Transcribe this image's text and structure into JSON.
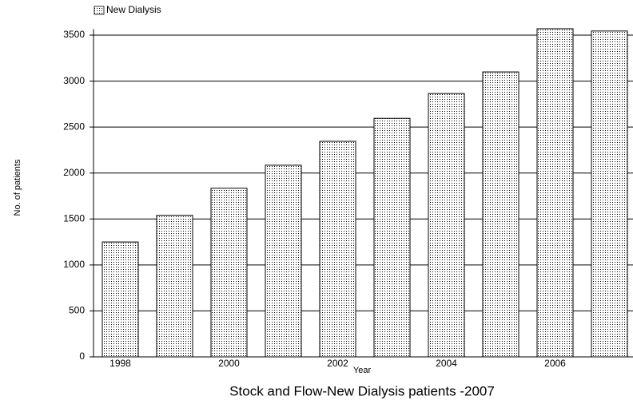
{
  "chart_data": {
    "type": "bar",
    "title": "Stock and Flow-New Dialysis patients -2007",
    "x_label": "Year",
    "y_label": "No. of patients",
    "categories": [
      "1998",
      null,
      "2000",
      null,
      "2002",
      null,
      "2004",
      null,
      "2006",
      null
    ],
    "series": [
      {
        "name": "New Dialysis",
        "color": "#000000",
        "values": [
          1250,
          1540,
          1835,
          2085,
          2345,
          2595,
          2865,
          3100,
          3570,
          3545
        ]
      }
    ],
    "ylim": [
      0,
      3600
    ],
    "yticks": [
      0,
      500,
      1000,
      1500,
      2000,
      2500,
      3000,
      3500
    ],
    "grid": true
  }
}
